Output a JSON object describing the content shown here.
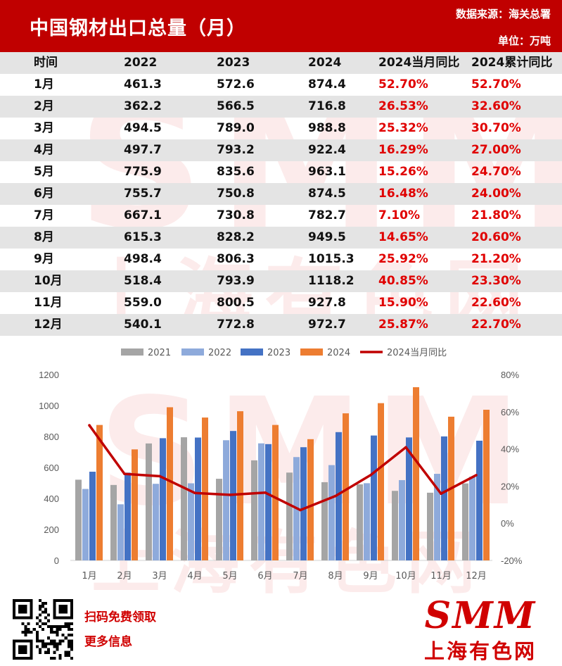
{
  "header": {
    "title": "中国钢材出口总量（月）",
    "source": "数据来源：海关总署",
    "unit": "单位：万吨"
  },
  "table": {
    "columns": [
      "时间",
      "2022",
      "2023",
      "2024",
      "2024当月同比",
      "2024累计同比"
    ],
    "rows": [
      [
        "1月",
        "461.3",
        "572.6",
        "874.4",
        "52.70%",
        "52.70%"
      ],
      [
        "2月",
        "362.2",
        "566.5",
        "716.8",
        "26.53%",
        "32.60%"
      ],
      [
        "3月",
        "494.5",
        "789.0",
        "988.8",
        "25.32%",
        "30.70%"
      ],
      [
        "4月",
        "497.7",
        "793.2",
        "922.4",
        "16.29%",
        "27.00%"
      ],
      [
        "5月",
        "775.9",
        "835.6",
        "963.1",
        "15.26%",
        "24.70%"
      ],
      [
        "6月",
        "755.7",
        "750.8",
        "874.5",
        "16.48%",
        "24.00%"
      ],
      [
        "7月",
        "667.1",
        "730.8",
        "782.7",
        "7.10%",
        "21.80%"
      ],
      [
        "8月",
        "615.3",
        "828.2",
        "949.5",
        "14.65%",
        "20.60%"
      ],
      [
        "9月",
        "498.4",
        "806.3",
        "1015.3",
        "25.92%",
        "21.20%"
      ],
      [
        "10月",
        "518.4",
        "793.9",
        "1118.2",
        "40.85%",
        "23.30%"
      ],
      [
        "11月",
        "559.0",
        "800.5",
        "927.8",
        "15.90%",
        "22.60%"
      ],
      [
        "12月",
        "540.1",
        "772.8",
        "972.7",
        "25.87%",
        "22.70%"
      ]
    ]
  },
  "chart_data": {
    "type": "bar",
    "categories": [
      "1月",
      "2月",
      "3月",
      "4月",
      "5月",
      "6月",
      "7月",
      "8月",
      "9月",
      "10月",
      "11月",
      "12月"
    ],
    "series": [
      {
        "name": "2021",
        "kind": "bar",
        "color": "#a5a5a5",
        "values": [
          521,
          487,
          755,
          795,
          527,
          646,
          567,
          505,
          491,
          449,
          437,
          497
        ]
      },
      {
        "name": "2022",
        "kind": "bar",
        "color": "#8eaadb",
        "values": [
          461.3,
          362.2,
          494.5,
          497.7,
          775.9,
          755.7,
          667.1,
          615.3,
          498.4,
          518.4,
          559.0,
          540.1
        ]
      },
      {
        "name": "2023",
        "kind": "bar",
        "color": "#4472c4",
        "values": [
          572.6,
          566.5,
          789.0,
          793.2,
          835.6,
          750.8,
          730.8,
          828.2,
          806.3,
          793.9,
          800.5,
          772.8
        ]
      },
      {
        "name": "2024",
        "kind": "bar",
        "color": "#ed7d31",
        "values": [
          874.4,
          716.8,
          988.8,
          922.4,
          963.1,
          874.5,
          782.7,
          949.5,
          1015.3,
          1118.2,
          927.8,
          972.7
        ]
      },
      {
        "name": "2024当月同比",
        "kind": "line",
        "axis": "right",
        "color": "#c00000",
        "values": [
          52.7,
          26.53,
          25.32,
          16.29,
          15.26,
          16.48,
          7.1,
          14.65,
          25.92,
          40.85,
          15.9,
          25.87
        ]
      }
    ],
    "ylim": [
      0,
      1200
    ],
    "yticks": [
      "0",
      "200",
      "400",
      "600",
      "800",
      "1000",
      "1200"
    ],
    "y2lim": [
      -20,
      80
    ],
    "y2ticks": [
      "-20%",
      "0%",
      "20%",
      "40%",
      "60%",
      "80%"
    ],
    "legend": "top"
  },
  "footer": {
    "line1": "扫码免费领取",
    "line2": "更多信息",
    "logo_main": "SMM",
    "logo_sub": "上海有色网"
  },
  "watermark": {
    "text_a": "SMM",
    "text_b": "上海有色网"
  }
}
